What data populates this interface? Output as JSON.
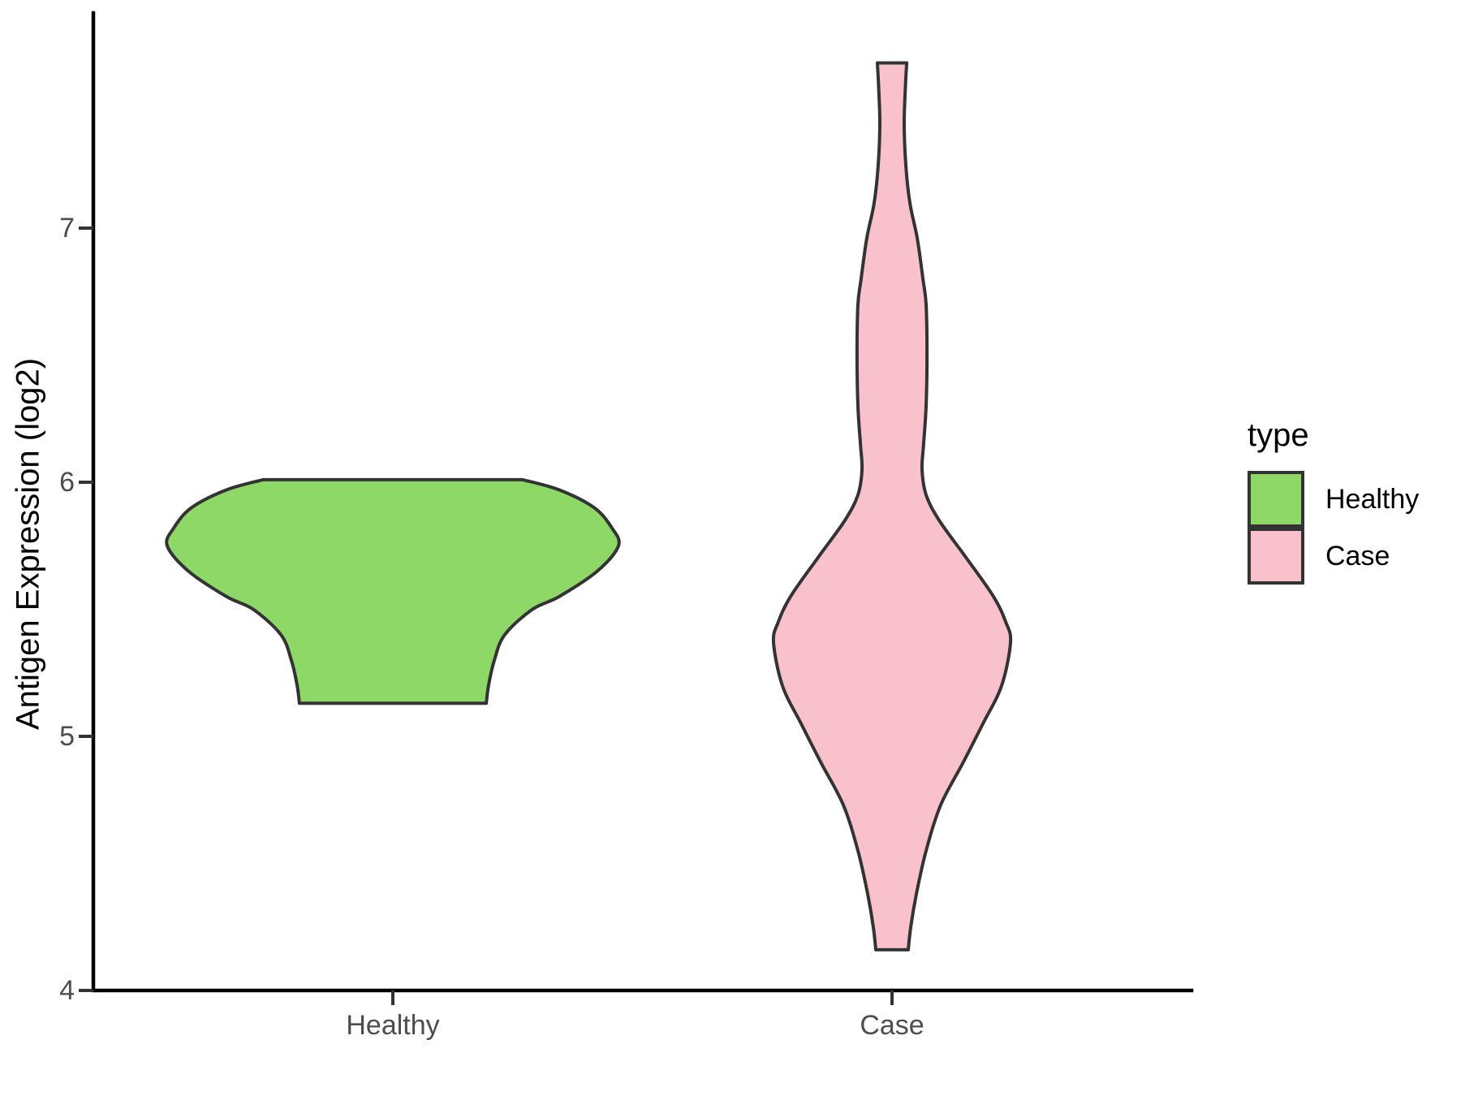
{
  "chart_data": {
    "type": "violin",
    "title": "",
    "xlabel": "",
    "ylabel": "Antigen Expression (log2)",
    "categories": [
      "Healthy",
      "Case"
    ],
    "y_ticks": [
      7,
      6,
      5,
      4
    ],
    "y_tick_labels": [
      "7",
      "6",
      "5",
      "4"
    ],
    "ylim": [
      4,
      7.85
    ],
    "grid": "off",
    "panel_background": "#ffffff",
    "axis_color": "#000000",
    "tick_label_color": "#4d4d4d",
    "outline_color": "#333333",
    "legend": {
      "title": "type",
      "position": "right",
      "entries": [
        {
          "label": "Healthy",
          "color": "#8DD867"
        },
        {
          "label": "Case",
          "color": "#F8C1CC"
        }
      ]
    },
    "series": [
      {
        "name": "Healthy",
        "fill": "#8DD867",
        "value_range": [
          5.13,
          6.01
        ],
        "peak_value": 5.75,
        "profile": [
          {
            "v": 6.01,
            "w": 0.576
          },
          {
            "v": 5.97,
            "w": 0.737
          },
          {
            "v": 5.9,
            "w": 0.892
          },
          {
            "v": 5.82,
            "w": 0.971
          },
          {
            "v": 5.75,
            "w": 1.0
          },
          {
            "v": 5.65,
            "w": 0.906
          },
          {
            "v": 5.55,
            "w": 0.737
          },
          {
            "v": 5.5,
            "w": 0.619
          },
          {
            "v": 5.4,
            "w": 0.496
          },
          {
            "v": 5.3,
            "w": 0.45
          },
          {
            "v": 5.2,
            "w": 0.424
          },
          {
            "v": 5.13,
            "w": 0.414
          }
        ]
      },
      {
        "name": "Case",
        "fill": "#F8C1CC",
        "value_range": [
          4.16,
          7.65
        ],
        "peak_value": 5.37,
        "profile": [
          {
            "v": 7.65,
            "w": 0.065
          },
          {
            "v": 7.55,
            "w": 0.059
          },
          {
            "v": 7.41,
            "w": 0.054
          },
          {
            "v": 7.25,
            "w": 0.061
          },
          {
            "v": 7.1,
            "w": 0.079
          },
          {
            "v": 6.96,
            "w": 0.112
          },
          {
            "v": 6.8,
            "w": 0.137
          },
          {
            "v": 6.7,
            "w": 0.151
          },
          {
            "v": 6.5,
            "w": 0.155
          },
          {
            "v": 6.3,
            "w": 0.151
          },
          {
            "v": 6.15,
            "w": 0.14
          },
          {
            "v": 6.05,
            "w": 0.133
          },
          {
            "v": 5.95,
            "w": 0.151
          },
          {
            "v": 5.85,
            "w": 0.209
          },
          {
            "v": 5.7,
            "w": 0.331
          },
          {
            "v": 5.55,
            "w": 0.45
          },
          {
            "v": 5.45,
            "w": 0.504
          },
          {
            "v": 5.37,
            "w": 0.525
          },
          {
            "v": 5.2,
            "w": 0.486
          },
          {
            "v": 5.05,
            "w": 0.403
          },
          {
            "v": 4.9,
            "w": 0.317
          },
          {
            "v": 4.73,
            "w": 0.216
          },
          {
            "v": 4.55,
            "w": 0.151
          },
          {
            "v": 4.38,
            "w": 0.108
          },
          {
            "v": 4.25,
            "w": 0.083
          },
          {
            "v": 4.16,
            "w": 0.072
          }
        ]
      }
    ]
  }
}
